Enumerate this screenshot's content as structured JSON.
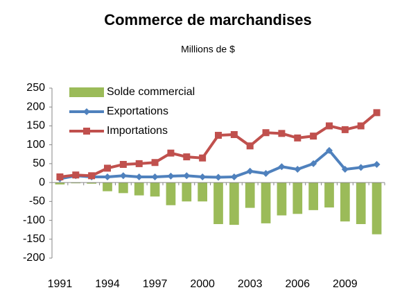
{
  "chart_data": {
    "type": "bar-line",
    "title": "Commerce de marchandises",
    "subtitle": "Millions de $",
    "categories": [
      "1991",
      null,
      null,
      "1994",
      null,
      null,
      "1997",
      null,
      null,
      "2000",
      null,
      null,
      "2003",
      null,
      null,
      "2006",
      null,
      null,
      "2009",
      null,
      null
    ],
    "series": [
      {
        "name": "Solde commercial",
        "type": "bar",
        "color": "#9bbb59",
        "values": [
          -5,
          -2,
          -3,
          -23,
          -28,
          -34,
          -37,
          -60,
          -50,
          -50,
          -110,
          -112,
          -67,
          -108,
          -87,
          -83,
          -73,
          -66,
          -103,
          -110,
          -137
        ]
      },
      {
        "name": "Exportations",
        "type": "line",
        "marker": "diamond",
        "color": "#4f81bd",
        "values": [
          10,
          18,
          15,
          15,
          18,
          15,
          15,
          17,
          18,
          15,
          14,
          15,
          30,
          24,
          42,
          35,
          50,
          85,
          35,
          40,
          48
        ]
      },
      {
        "name": "Importations",
        "type": "line",
        "marker": "square",
        "color": "#c0504d",
        "values": [
          15,
          20,
          18,
          38,
          48,
          50,
          53,
          78,
          68,
          65,
          125,
          127,
          97,
          132,
          130,
          118,
          123,
          150,
          140,
          150,
          185
        ]
      }
    ],
    "ylim": [
      -200,
      250
    ],
    "yticks": [
      -200,
      -150,
      -100,
      -50,
      0,
      50,
      100,
      150,
      200,
      250
    ],
    "grid": false,
    "legend": "upper left"
  }
}
